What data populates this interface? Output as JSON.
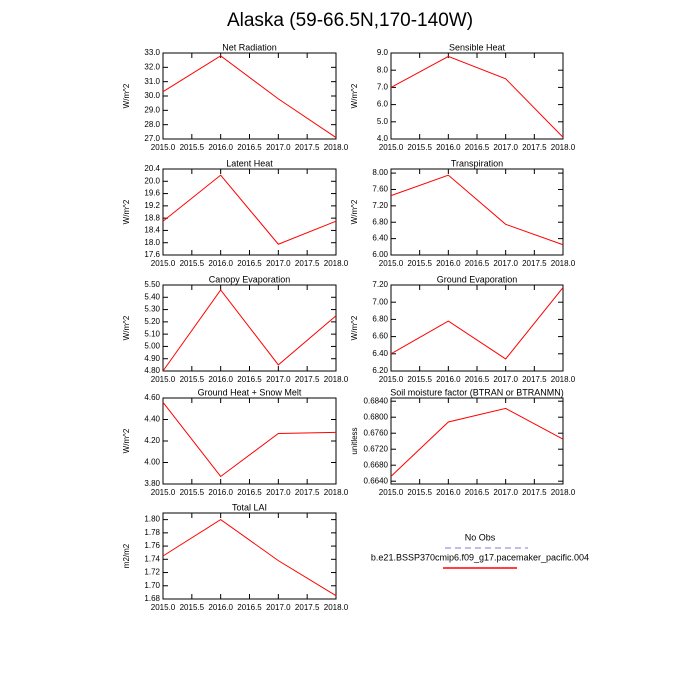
{
  "title": "Alaska (59-66.5N,170-140W)",
  "legend": [
    {
      "name": "No Obs",
      "color": "#a8a8e0",
      "dashed": true
    },
    {
      "name": "b.e21.BSSP370cmip6.f09_g17.pacemaker_pacific.004",
      "color": "#ff0000",
      "dashed": false
    }
  ],
  "chart_data": [
    {
      "type": "line",
      "title": "Net Radiation",
      "ylabel": "W/m^2",
      "color": "#ff0000",
      "x": [
        2015,
        2016,
        2017,
        2018
      ],
      "values": [
        30.3,
        32.8,
        29.8,
        27.1
      ],
      "xlim": [
        2015,
        2018
      ],
      "xticks": [
        {
          "value": 2015,
          "label": "2015.0"
        },
        {
          "value": 2015.5,
          "label": "2015.5"
        },
        {
          "value": 2016,
          "label": "2016.0"
        },
        {
          "value": 2016.5,
          "label": "2016.5"
        },
        {
          "value": 2017,
          "label": "2017.0"
        },
        {
          "value": 2017.5,
          "label": "2017.5"
        },
        {
          "value": 2018,
          "label": "2018.0"
        }
      ],
      "ylim": [
        27,
        33
      ],
      "yticks": [
        {
          "value": 27,
          "label": "27.0"
        },
        {
          "value": 28,
          "label": "28.0"
        },
        {
          "value": 29,
          "label": "29.0"
        },
        {
          "value": 30,
          "label": "30.0"
        },
        {
          "value": 31,
          "label": "31.0"
        },
        {
          "value": 32,
          "label": "32.0"
        },
        {
          "value": 33,
          "label": "33.0"
        }
      ]
    },
    {
      "type": "line",
      "title": "Sensible Heat",
      "ylabel": "W/m^2",
      "color": "#ff0000",
      "x": [
        2015,
        2016,
        2017,
        2018
      ],
      "values": [
        7.0,
        8.8,
        7.5,
        4.1
      ],
      "xlim": [
        2015,
        2018
      ],
      "xticks": [
        {
          "value": 2015,
          "label": "2015.0"
        },
        {
          "value": 2015.5,
          "label": "2015.5"
        },
        {
          "value": 2016,
          "label": "2016.0"
        },
        {
          "value": 2016.5,
          "label": "2016.5"
        },
        {
          "value": 2017,
          "label": "2017.0"
        },
        {
          "value": 2017.5,
          "label": "2017.5"
        },
        {
          "value": 2018,
          "label": "2018.0"
        }
      ],
      "ylim": [
        4,
        9
      ],
      "yticks": [
        {
          "value": 4,
          "label": "4.0"
        },
        {
          "value": 5,
          "label": "5.0"
        },
        {
          "value": 6,
          "label": "6.0"
        },
        {
          "value": 7,
          "label": "7.0"
        },
        {
          "value": 8,
          "label": "8.0"
        },
        {
          "value": 9,
          "label": "9.0"
        }
      ]
    },
    {
      "type": "line",
      "title": "Latent Heat",
      "ylabel": "W/m^2",
      "color": "#ff0000",
      "x": [
        2015,
        2016,
        2017,
        2018
      ],
      "values": [
        18.7,
        20.2,
        17.95,
        18.7
      ],
      "xlim": [
        2015,
        2018
      ],
      "xticks": [
        {
          "value": 2015,
          "label": "2015.0"
        },
        {
          "value": 2015.5,
          "label": "2015.5"
        },
        {
          "value": 2016,
          "label": "2016.0"
        },
        {
          "value": 2016.5,
          "label": "2016.5"
        },
        {
          "value": 2017,
          "label": "2017.0"
        },
        {
          "value": 2017.5,
          "label": "2017.5"
        },
        {
          "value": 2018,
          "label": "2018.0"
        }
      ],
      "ylim": [
        17.6,
        20.4
      ],
      "yticks": [
        {
          "value": 17.6,
          "label": "17.6"
        },
        {
          "value": 18,
          "label": "18.0"
        },
        {
          "value": 18.4,
          "label": "18.4"
        },
        {
          "value": 18.8,
          "label": "18.8"
        },
        {
          "value": 19.2,
          "label": "19.2"
        },
        {
          "value": 19.6,
          "label": "19.6"
        },
        {
          "value": 20,
          "label": "20.0"
        },
        {
          "value": 20.4,
          "label": "20.4"
        }
      ]
    },
    {
      "type": "line",
      "title": "Transpiration",
      "ylabel": "W/m^2",
      "color": "#ff0000",
      "x": [
        2015,
        2016,
        2017,
        2018
      ],
      "values": [
        7.45,
        7.95,
        6.75,
        6.25
      ],
      "xlim": [
        2015,
        2018
      ],
      "xticks": [
        {
          "value": 2015,
          "label": "2015.0"
        },
        {
          "value": 2015.5,
          "label": "2015.5"
        },
        {
          "value": 2016,
          "label": "2016.0"
        },
        {
          "value": 2016.5,
          "label": "2016.5"
        },
        {
          "value": 2017,
          "label": "2017.0"
        },
        {
          "value": 2017.5,
          "label": "2017.5"
        },
        {
          "value": 2018,
          "label": "2018.0"
        }
      ],
      "ylim": [
        6.0,
        8.1
      ],
      "yticks": [
        {
          "value": 6,
          "label": "6.00"
        },
        {
          "value": 6.4,
          "label": "6.40"
        },
        {
          "value": 6.8,
          "label": "6.80"
        },
        {
          "value": 7.2,
          "label": "7.20"
        },
        {
          "value": 7.6,
          "label": "7.60"
        },
        {
          "value": 8,
          "label": "8.00"
        }
      ]
    },
    {
      "type": "line",
      "title": "Canopy Evaporation",
      "ylabel": "W/m^2",
      "color": "#ff0000",
      "x": [
        2015,
        2016,
        2017,
        2018
      ],
      "values": [
        4.8,
        5.46,
        4.85,
        5.25
      ],
      "xlim": [
        2015,
        2018
      ],
      "xticks": [
        {
          "value": 2015,
          "label": "2015.0"
        },
        {
          "value": 2015.5,
          "label": "2015.5"
        },
        {
          "value": 2016,
          "label": "2016.0"
        },
        {
          "value": 2016.5,
          "label": "2016.5"
        },
        {
          "value": 2017,
          "label": "2017.0"
        },
        {
          "value": 2017.5,
          "label": "2017.5"
        },
        {
          "value": 2018,
          "label": "2018.0"
        }
      ],
      "ylim": [
        4.8,
        5.5
      ],
      "yticks": [
        {
          "value": 4.8,
          "label": "4.80"
        },
        {
          "value": 4.9,
          "label": "4.90"
        },
        {
          "value": 5.0,
          "label": "5.00"
        },
        {
          "value": 5.1,
          "label": "5.10"
        },
        {
          "value": 5.2,
          "label": "5.20"
        },
        {
          "value": 5.3,
          "label": "5.30"
        },
        {
          "value": 5.4,
          "label": "5.40"
        },
        {
          "value": 5.5,
          "label": "5.50"
        }
      ]
    },
    {
      "type": "line",
      "title": "Ground Evaporation",
      "ylabel": "W/m^2",
      "color": "#ff0000",
      "x": [
        2015,
        2016,
        2017,
        2018
      ],
      "values": [
        6.4,
        6.78,
        6.34,
        7.17
      ],
      "xlim": [
        2015,
        2018
      ],
      "xticks": [
        {
          "value": 2015,
          "label": "2015.0"
        },
        {
          "value": 2015.5,
          "label": "2015.5"
        },
        {
          "value": 2016,
          "label": "2016.0"
        },
        {
          "value": 2016.5,
          "label": "2016.5"
        },
        {
          "value": 2017,
          "label": "2017.0"
        },
        {
          "value": 2017.5,
          "label": "2017.5"
        },
        {
          "value": 2018,
          "label": "2018.0"
        }
      ],
      "ylim": [
        6.2,
        7.2
      ],
      "yticks": [
        {
          "value": 6.2,
          "label": "6.20"
        },
        {
          "value": 6.4,
          "label": "6.40"
        },
        {
          "value": 6.6,
          "label": "6.60"
        },
        {
          "value": 6.8,
          "label": "6.80"
        },
        {
          "value": 7.0,
          "label": "7.00"
        },
        {
          "value": 7.2,
          "label": "7.20"
        }
      ]
    },
    {
      "type": "line",
      "title": "Ground Heat + Snow Melt",
      "ylabel": "W/m^2",
      "color": "#ff0000",
      "x": [
        2015,
        2016,
        2017,
        2018
      ],
      "values": [
        4.56,
        3.87,
        4.27,
        4.28
      ],
      "xlim": [
        2015,
        2018
      ],
      "xticks": [
        {
          "value": 2015,
          "label": "2015.0"
        },
        {
          "value": 2015.5,
          "label": "2015.5"
        },
        {
          "value": 2016,
          "label": "2016.0"
        },
        {
          "value": 2016.5,
          "label": "2016.5"
        },
        {
          "value": 2017,
          "label": "2017.0"
        },
        {
          "value": 2017.5,
          "label": "2017.5"
        },
        {
          "value": 2018,
          "label": "2018.0"
        }
      ],
      "ylim": [
        3.8,
        4.6
      ],
      "yticks": [
        {
          "value": 3.8,
          "label": "3.80"
        },
        {
          "value": 4.0,
          "label": "4.00"
        },
        {
          "value": 4.2,
          "label": "4.20"
        },
        {
          "value": 4.4,
          "label": "4.40"
        },
        {
          "value": 4.6,
          "label": "4.60"
        }
      ]
    },
    {
      "type": "line",
      "title": "Soil moisture factor (BTRAN or BTRANMN)",
      "ylabel": "unitless",
      "color": "#ff0000",
      "x": [
        2015,
        2016,
        2017,
        2018
      ],
      "values": [
        0.6652,
        0.6788,
        0.6822,
        0.6745
      ],
      "xlim": [
        2015,
        2018
      ],
      "xticks": [
        {
          "value": 2015,
          "label": "2015.0"
        },
        {
          "value": 2015.5,
          "label": "2015.5"
        },
        {
          "value": 2016,
          "label": "2016.0"
        },
        {
          "value": 2016.5,
          "label": "2016.5"
        },
        {
          "value": 2017,
          "label": "2017.0"
        },
        {
          "value": 2017.5,
          "label": "2017.5"
        },
        {
          "value": 2018,
          "label": "2018.0"
        }
      ],
      "ylim": [
        0.6633,
        0.6848
      ],
      "yticks": [
        {
          "value": 0.664,
          "label": "0.6640"
        },
        {
          "value": 0.668,
          "label": "0.6680"
        },
        {
          "value": 0.672,
          "label": "0.6720"
        },
        {
          "value": 0.676,
          "label": "0.6760"
        },
        {
          "value": 0.68,
          "label": "0.6800"
        },
        {
          "value": 0.684,
          "label": "0.6840"
        }
      ]
    },
    {
      "type": "line",
      "title": "Total LAI",
      "ylabel": "m2/m2",
      "color": "#ff0000",
      "x": [
        2015,
        2016,
        2017,
        2018
      ],
      "values": [
        1.745,
        1.8,
        1.738,
        1.685
      ],
      "xlim": [
        2015,
        2018
      ],
      "xticks": [
        {
          "value": 2015,
          "label": "2015.0"
        },
        {
          "value": 2015.5,
          "label": "2015.5"
        },
        {
          "value": 2016,
          "label": "2016.0"
        },
        {
          "value": 2016.5,
          "label": "2016.5"
        },
        {
          "value": 2017,
          "label": "2017.0"
        },
        {
          "value": 2017.5,
          "label": "2017.5"
        },
        {
          "value": 2018,
          "label": "2018.0"
        }
      ],
      "ylim": [
        1.68,
        1.81
      ],
      "yticks": [
        {
          "value": 1.68,
          "label": "1.68"
        },
        {
          "value": 1.7,
          "label": "1.70"
        },
        {
          "value": 1.72,
          "label": "1.72"
        },
        {
          "value": 1.74,
          "label": "1.74"
        },
        {
          "value": 1.76,
          "label": "1.76"
        },
        {
          "value": 1.78,
          "label": "1.78"
        },
        {
          "value": 1.8,
          "label": "1.80"
        }
      ]
    }
  ]
}
